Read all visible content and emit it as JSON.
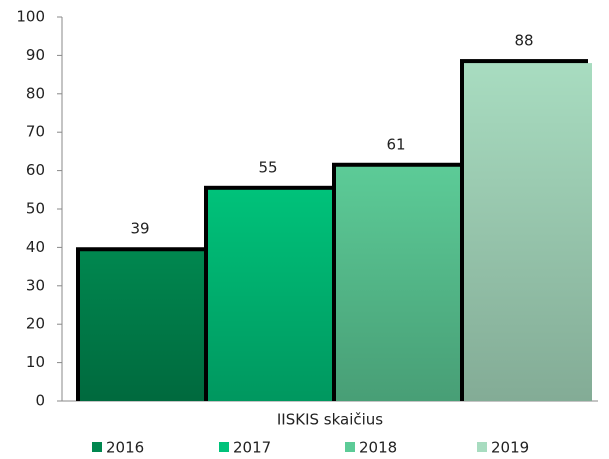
{
  "chart_data": {
    "type": "bar",
    "categories": [
      "IISKIS skaičius"
    ],
    "series": [
      {
        "name": "2016",
        "color": "#00874f",
        "values": [
          39
        ]
      },
      {
        "name": "2017",
        "color": "#00c27a",
        "values": [
          55
        ]
      },
      {
        "name": "2018",
        "color": "#5ccb97",
        "values": [
          61
        ]
      },
      {
        "name": "2019",
        "color": "#a8dcc0",
        "values": [
          88
        ]
      }
    ],
    "ylim": [
      0,
      100
    ],
    "yticks": [
      0,
      10,
      20,
      30,
      40,
      50,
      60,
      70,
      80,
      90,
      100
    ],
    "grid": false
  }
}
